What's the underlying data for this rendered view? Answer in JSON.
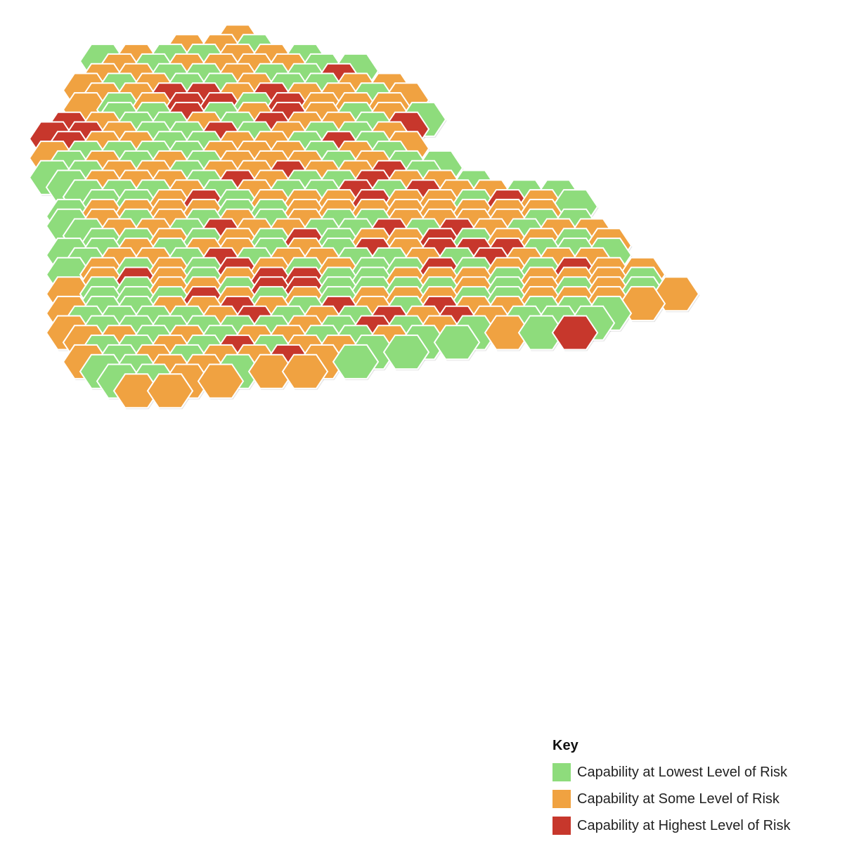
{
  "colors": {
    "low": "#8edc7c",
    "some": "#f0a241",
    "high": "#c7372c",
    "edge": "#ffffff"
  },
  "legend": {
    "title": "Key",
    "items": [
      {
        "key": "low",
        "label": "Capability at Lowest Level of Risk"
      },
      {
        "key": "some",
        "label": "Capability at Some Level of Risk"
      },
      {
        "key": "high",
        "label": "Capability at Highest Level of Risk"
      }
    ]
  },
  "chart_data": {
    "type": "heatmap",
    "title": "",
    "layout": "hexagonal-grid",
    "categories": [
      "low",
      "some",
      "high"
    ],
    "rows": [
      "........... S..............",
      ".........S.S.L..........",
      "....L.S.L.L.S.S.L......",
      ".....S.L.S.S.S.S.L.L...",
      "....S.S.L.L.S.L.L.H.....",
      "...S.L.S.L.L.S.L.L.S.S..",
      "....S.S.H.H.S.H.S.S.L.S.",
      "...S.L.S.H.H.L.H.S.S.S...",
      ".....L.L.H.L.S.H.S.L.S.L",
      "..H.S.L.L.S.L.H.S.S.L.H...",
      ".H.H.S.L.L.H.L.S.L.L.S..",
      "..H.S.S.L.L.S.S.L.H.L.S.",
      ".S.L.L.L.L.S.S.S.L.S.L...",
      "..L.S.L.S.L.S.S.S.L.S.L.L.",
      ".L.L.S.S.L.S.S.H.S.S.H.L..",
      "..L.S.S.S.L.H.S.L.L.H.S.S.L",
      "...L.L.L.S.L.S.L.L.H.L.H.S.S.L.L",
      "....L.L.S.H.L.S.S.S.H.S.S.L.H.S.L",
      "..L.S.S.S.S.L.L.S.S.S.S.S.S.S.S",
      "..L.S.L.S.L.S.L.S.L.L.S.S.S.S.L.L",
      "...L.S.S.L.H.S.S.L.L.H.L.H.S.L.S.S",
      "....L.L.S.L.S.L.H.L.S.S.H.L.S.S.L.S",
      "..L.L.S.L.S.S.L.S.L.H.S.H.H.H.L.L.L",
      "...L.S.S.L.H.L.S.S.L.L.S.L.H.S.S.S",
      "..L.S.L.S.L.H.S.L.S.L.L.H.L.S.L.H.S.S",
      "....S.H.S.L.S.H.H.L.L.S.S.S.L.S.S.S.L",
      "..S.L.L.S.S.L.H.H.L.L.L.L.S.L.S.L.S.L.S",
      "....L.L.L.H.S.L.S.L.S.S.S.L.L.S.S.S.S",
      "..S.L.L.S.S.H.S.L.H.S.L.H.S.S.L.L.L",
      "...L.L.L.L.S.H.L.S.L.H.S.H.S.L.L.L",
      "..S.L.L.L.L.L.L.S.L.H.L.S.L.S.L.H",
      "...S.S.L.S.L.S.S.L.L.S.L.L",
      "....L.L.S.L.H.L.S.S.L.L",
      "...S.L.S.L.S.S.H.S.L",
      "....L.L.S.S.L.S.S",
      ".....L.L.S.S",
      "......S.S"
    ]
  }
}
